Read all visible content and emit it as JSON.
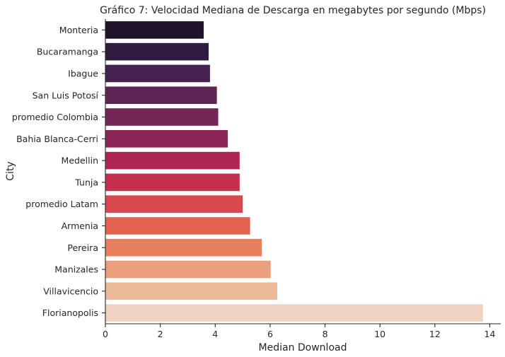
{
  "chart_data": {
    "type": "bar",
    "orientation": "horizontal",
    "title": "Gráfico 7: Velocidad Mediana de Descarga en megabytes por segundo (Mbps)",
    "xlabel": "Median Download",
    "ylabel": "City",
    "xlim": [
      0,
      14.4
    ],
    "xticks": [
      0,
      2,
      4,
      6,
      8,
      10,
      12,
      14
    ],
    "grid": false,
    "legend": "none",
    "categories": [
      "Monteria",
      "Bucaramanga",
      "Ibague",
      "San Luis Potosí",
      "promedio Colombia",
      "Bahia Blanca-Cerri",
      "Medellin",
      "Tunja",
      "promedio Latam",
      "Armenia",
      "Pereira",
      "Manizales",
      "Villavicencio",
      "Florianopolis"
    ],
    "values": [
      3.58,
      3.76,
      3.81,
      4.06,
      4.11,
      4.46,
      4.89,
      4.89,
      5.0,
      5.27,
      5.7,
      6.02,
      6.26,
      13.75
    ],
    "colors": [
      "#1f1329",
      "#2f1b3f",
      "#44214e",
      "#5c2552",
      "#732756",
      "#8b2656",
      "#ae2753",
      "#c5304e",
      "#d8494d",
      "#e2624f",
      "#e88060",
      "#eb9e7b",
      "#ecb999",
      "#f0d3c0"
    ]
  }
}
